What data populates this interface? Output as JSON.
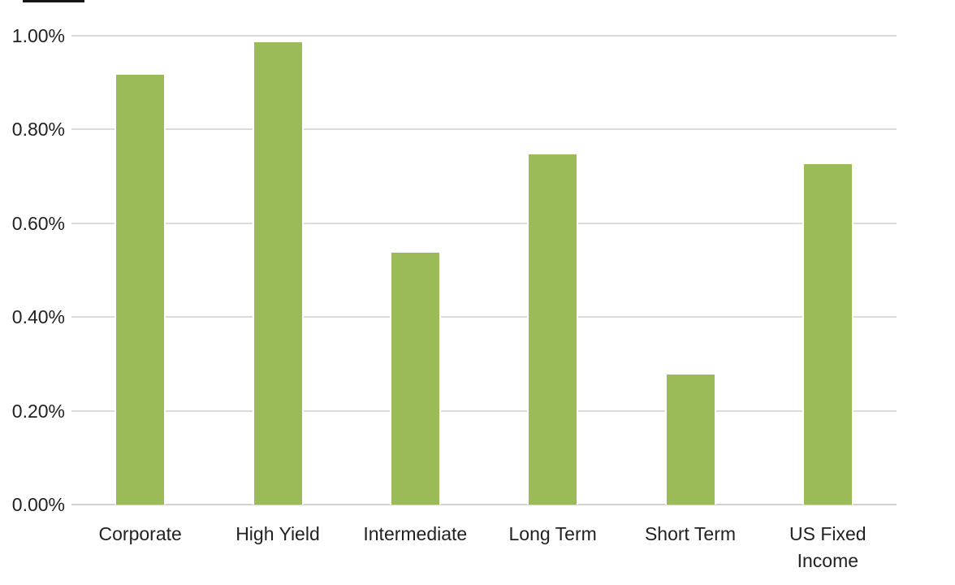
{
  "chart_data": {
    "type": "bar",
    "title": "",
    "xlabel": "",
    "ylabel": "",
    "categories": [
      "Corporate",
      "High Yield",
      "Intermediate",
      "Long Term",
      "Short Term",
      "US Fixed Income"
    ],
    "values": [
      0.92,
      0.99,
      0.54,
      0.75,
      0.28,
      0.73
    ],
    "value_unit": "%",
    "ylim": [
      0,
      1.0
    ],
    "ytick_values": [
      0,
      0.2,
      0.4,
      0.6,
      0.8,
      1.0
    ],
    "ytick_labels": [
      "0.00%",
      "0.20%",
      "0.40%",
      "0.60%",
      "0.80%",
      "1.00%"
    ],
    "grid": "horizontal",
    "legend": "none",
    "colors": {
      "bar_fill": "#9bbb59",
      "bar_stroke": "#ffffff",
      "gridline": "#dbdbdb",
      "axis_line": "#d0d0d0",
      "label_text": "#222222",
      "background": "#ffffff"
    }
  }
}
